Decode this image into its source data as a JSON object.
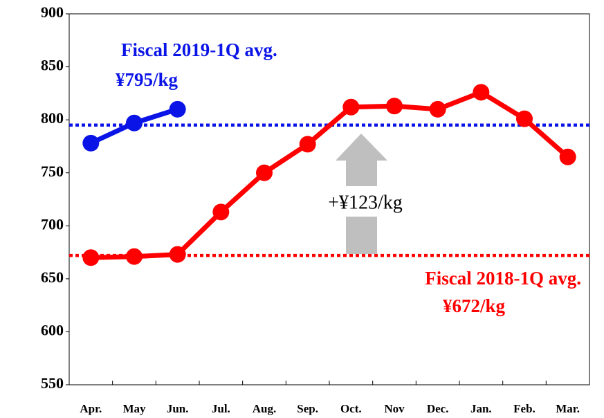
{
  "chart_data": {
    "type": "line",
    "categories": [
      "Apr.",
      "May",
      "Jun.",
      "Jul.",
      "Aug.",
      "Sep.",
      "Oct.",
      "Nov",
      "Dec.",
      "Jan.",
      "Feb.",
      "Mar."
    ],
    "series": [
      {
        "color": "#ff0000",
        "values": [
          670,
          671,
          673,
          713,
          750,
          777,
          812,
          813,
          810,
          826,
          801,
          765
        ]
      },
      {
        "color": "#0a14e6",
        "values": [
          778,
          797,
          810,
          null,
          null,
          null,
          null,
          null,
          null,
          null,
          null,
          null
        ]
      }
    ],
    "ylim": [
      550,
      900
    ],
    "yticks": [
      550,
      600,
      650,
      700,
      750,
      800,
      850,
      900
    ],
    "reference_lines": [
      {
        "value": 795,
        "color": "#0a14e6",
        "label": "Fiscal 2019-1Q avg.",
        "sublabel": "¥795/kg"
      },
      {
        "value": 672,
        "color": "#ff0000",
        "label": "Fiscal 2018-1Q avg.",
        "sublabel": "¥672/kg"
      }
    ],
    "annotation": "+¥123/kg"
  }
}
